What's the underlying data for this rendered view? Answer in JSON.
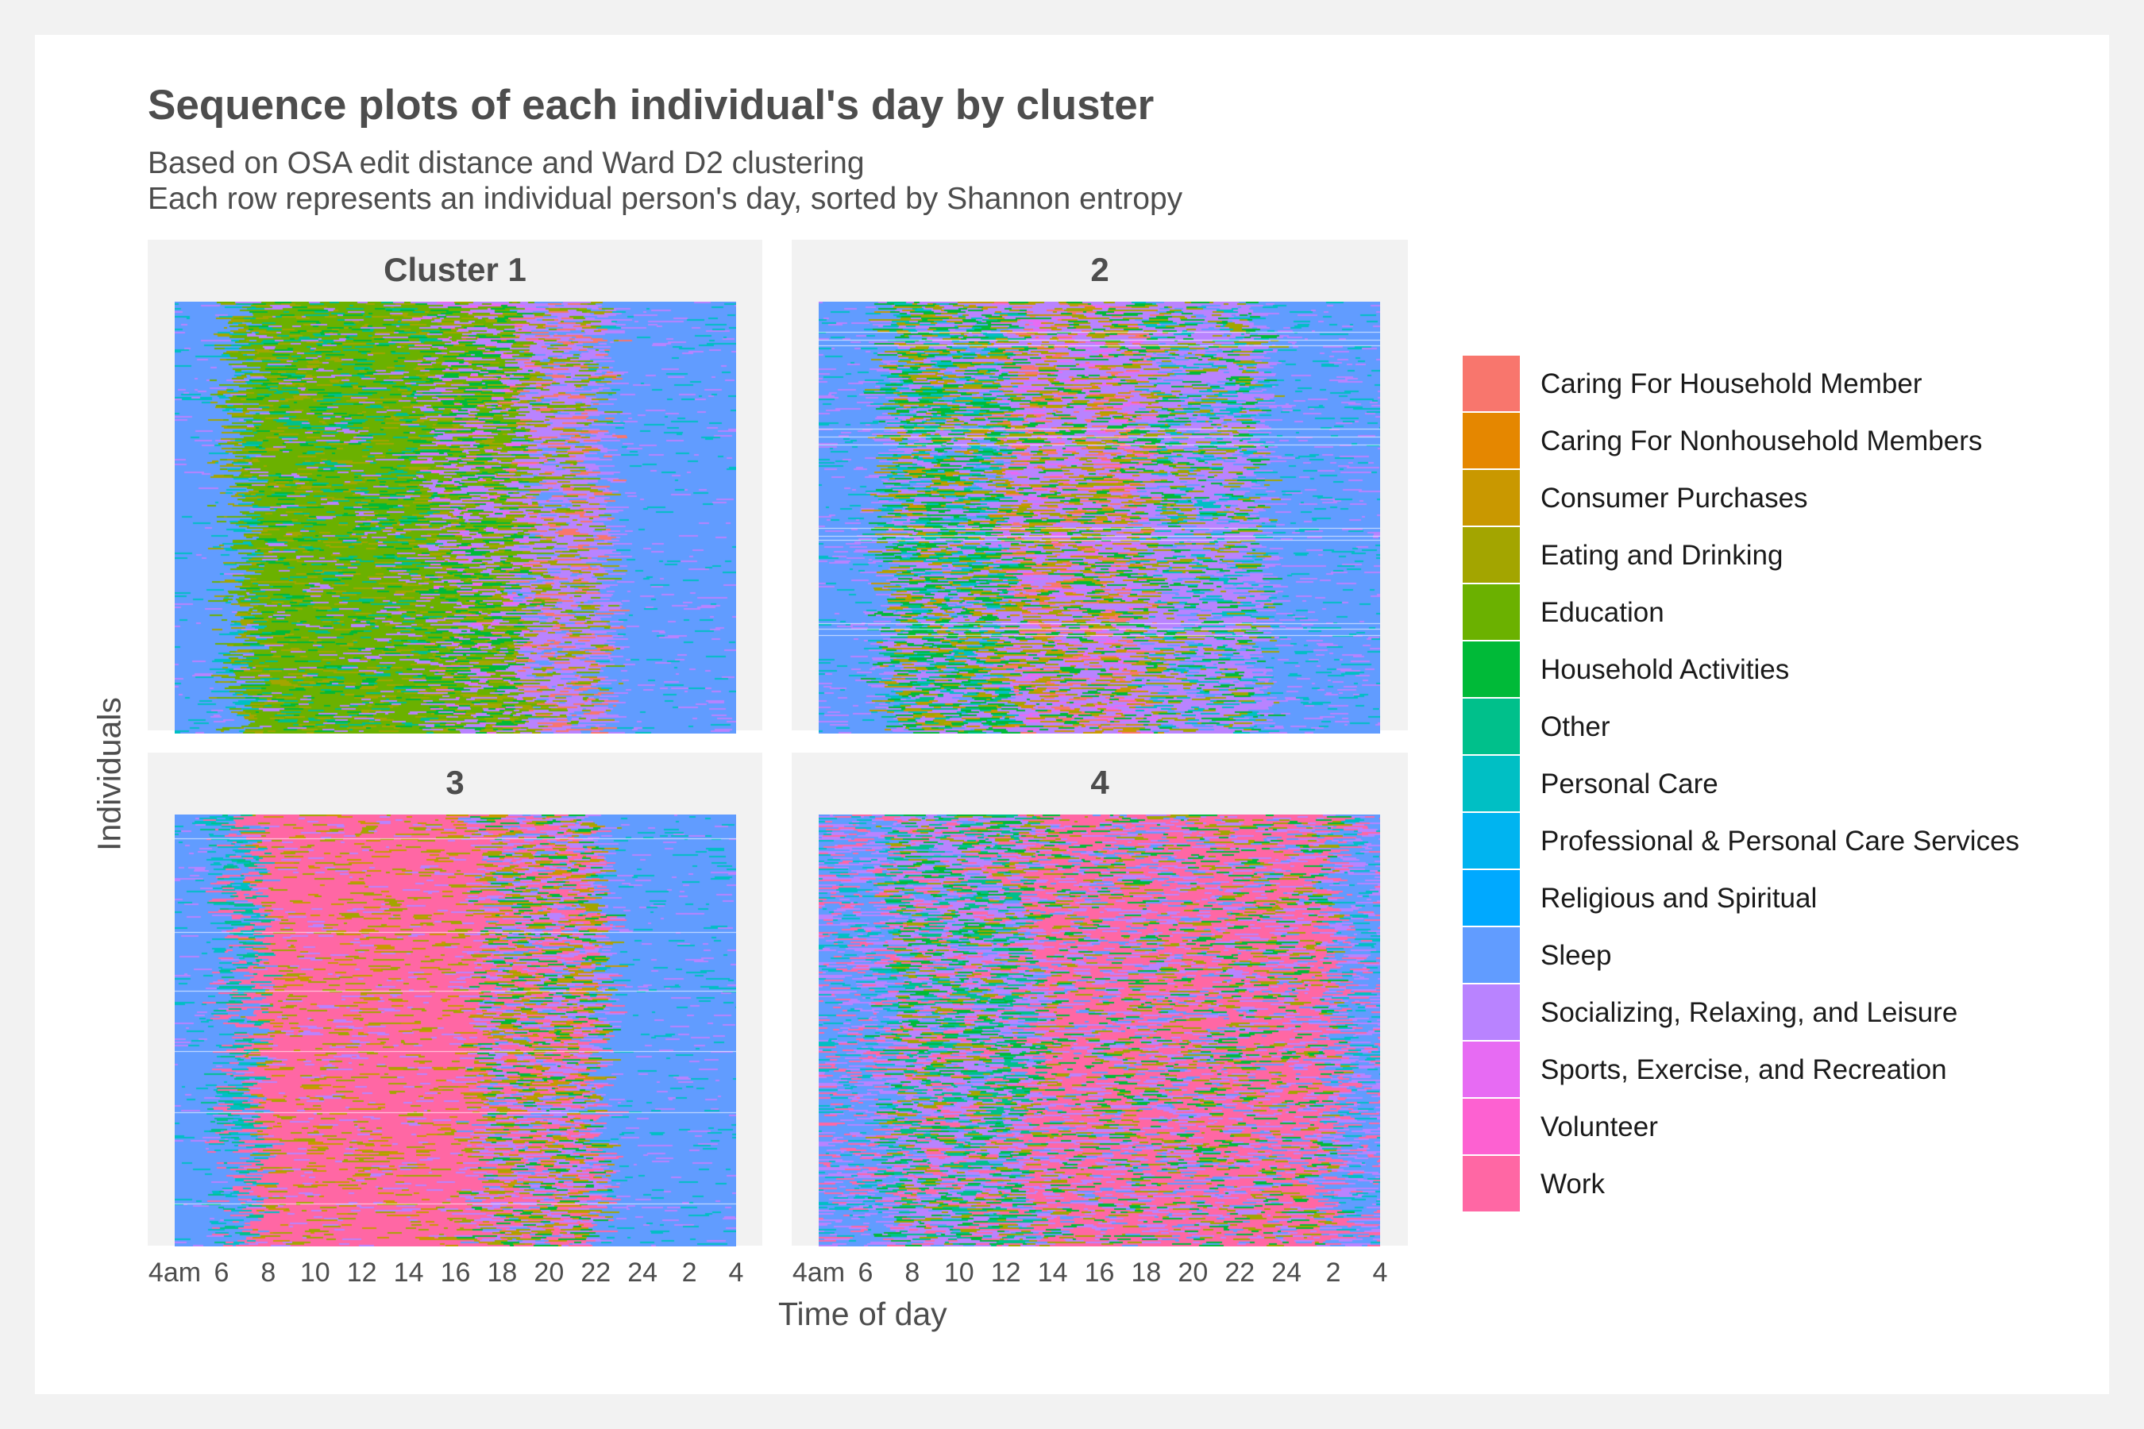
{
  "title": "Sequence plots of each individual's day by cluster",
  "subtitle_lines": [
    "Based on OSA edit distance and Ward D2 clustering",
    "Each row represents an individual person's day, sorted by Shannon entropy"
  ],
  "chart_data": {
    "type": "heatmap",
    "title": "Sequence plots of each individual's day by cluster",
    "xlabel": "Time of day",
    "ylabel": "Individuals",
    "x_tick_labels": [
      "4am",
      "6",
      "8",
      "10",
      "12",
      "14",
      "16",
      "18",
      "20",
      "22",
      "24",
      "2",
      "4"
    ],
    "x_range_hours": [
      4,
      28
    ],
    "facets": [
      "Cluster 1",
      "2",
      "3",
      "4"
    ],
    "legend": {
      "position": "right",
      "categories": [
        {
          "name": "Caring For Household Member",
          "color": "#F8766D"
        },
        {
          "name": "Caring For Nonhousehold Members",
          "color": "#E58700"
        },
        {
          "name": "Consumer Purchases",
          "color": "#C99800"
        },
        {
          "name": "Eating and Drinking",
          "color": "#A3A500"
        },
        {
          "name": "Education",
          "color": "#6BB100"
        },
        {
          "name": "Household Activities",
          "color": "#00BA38"
        },
        {
          "name": "Other",
          "color": "#00C08B"
        },
        {
          "name": "Personal Care",
          "color": "#00BFC4"
        },
        {
          "name": "Professional & Personal Care Services",
          "color": "#00B4F0"
        },
        {
          "name": "Religious and Spiritual",
          "color": "#00A9FF"
        },
        {
          "name": "Sleep",
          "color": "#619CFF"
        },
        {
          "name": "Socializing, Relaxing, and Leisure",
          "color": "#B983FF"
        },
        {
          "name": "Sports, Exercise, and Recreation",
          "color": "#E76BF3"
        },
        {
          "name": "Volunteer",
          "color": "#FD61D1"
        },
        {
          "name": "Work",
          "color": "#FF67A4"
        }
      ]
    },
    "dominant_activity_by_cluster": {
      "Cluster 1": "Education",
      "2": "Socializing, Relaxing, and Leisure",
      "3": "Work",
      "4": "Work"
    }
  }
}
